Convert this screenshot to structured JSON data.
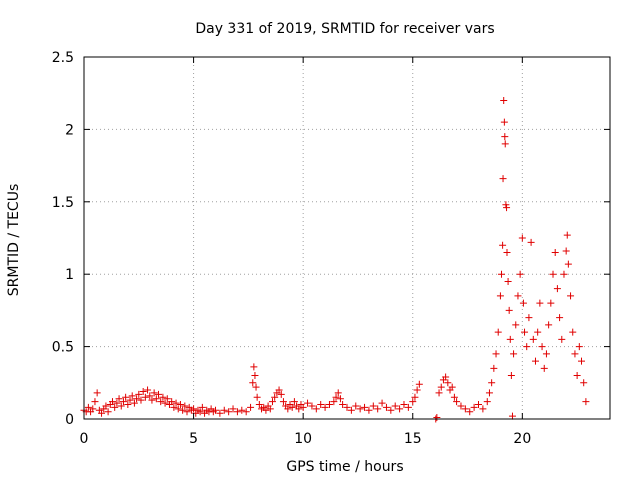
{
  "chart_data": {
    "type": "scatter",
    "title": "Day 331 of 2019, SRMTID for receiver vars",
    "xlabel": "GPS time / hours",
    "ylabel": "SRMTID / TECUs",
    "xlim": [
      0,
      24
    ],
    "ylim": [
      0,
      2.5
    ],
    "x_ticks": [
      0,
      5,
      10,
      15,
      20
    ],
    "x_tick_labels": [
      "0",
      "5",
      "10",
      "15",
      "20"
    ],
    "y_ticks": [
      0,
      0.5,
      1,
      1.5,
      2,
      2.5
    ],
    "y_tick_labels": [
      "0",
      "0.5",
      "1",
      "1.5",
      "2",
      "2.5"
    ],
    "grid": true,
    "marker": "+",
    "color": "#e00000",
    "series": [
      {
        "name": "SRMTID",
        "points": [
          [
            0.0,
            0.06
          ],
          [
            0.1,
            0.05
          ],
          [
            0.2,
            0.08
          ],
          [
            0.3,
            0.05
          ],
          [
            0.4,
            0.07
          ],
          [
            0.5,
            0.12
          ],
          [
            0.6,
            0.18
          ],
          [
            0.7,
            0.06
          ],
          [
            0.8,
            0.04
          ],
          [
            0.9,
            0.07
          ],
          [
            1.0,
            0.09
          ],
          [
            1.1,
            0.05
          ],
          [
            1.2,
            0.1
          ],
          [
            1.3,
            0.12
          ],
          [
            1.4,
            0.08
          ],
          [
            1.5,
            0.11
          ],
          [
            1.6,
            0.14
          ],
          [
            1.7,
            0.09
          ],
          [
            1.8,
            0.12
          ],
          [
            1.9,
            0.15
          ],
          [
            2.0,
            0.1
          ],
          [
            2.1,
            0.13
          ],
          [
            2.2,
            0.16
          ],
          [
            2.3,
            0.11
          ],
          [
            2.4,
            0.14
          ],
          [
            2.5,
            0.17
          ],
          [
            2.6,
            0.13
          ],
          [
            2.7,
            0.19
          ],
          [
            2.8,
            0.15
          ],
          [
            2.9,
            0.2
          ],
          [
            3.0,
            0.16
          ],
          [
            3.1,
            0.13
          ],
          [
            3.2,
            0.18
          ],
          [
            3.3,
            0.14
          ],
          [
            3.4,
            0.17
          ],
          [
            3.5,
            0.12
          ],
          [
            3.6,
            0.15
          ],
          [
            3.7,
            0.11
          ],
          [
            3.8,
            0.14
          ],
          [
            3.9,
            0.1
          ],
          [
            4.0,
            0.12
          ],
          [
            4.1,
            0.08
          ],
          [
            4.2,
            0.11
          ],
          [
            4.3,
            0.07
          ],
          [
            4.4,
            0.1
          ],
          [
            4.5,
            0.06
          ],
          [
            4.6,
            0.09
          ],
          [
            4.7,
            0.05
          ],
          [
            4.8,
            0.08
          ],
          [
            4.9,
            0.06
          ],
          [
            5.0,
            0.07
          ],
          [
            5.1,
            0.04
          ],
          [
            5.2,
            0.06
          ],
          [
            5.3,
            0.05
          ],
          [
            5.4,
            0.08
          ],
          [
            5.5,
            0.04
          ],
          [
            5.6,
            0.06
          ],
          [
            5.7,
            0.05
          ],
          [
            5.8,
            0.07
          ],
          [
            5.9,
            0.05
          ],
          [
            6.0,
            0.06
          ],
          [
            6.2,
            0.04
          ],
          [
            6.4,
            0.06
          ],
          [
            6.6,
            0.05
          ],
          [
            6.8,
            0.07
          ],
          [
            7.0,
            0.05
          ],
          [
            7.2,
            0.06
          ],
          [
            7.4,
            0.05
          ],
          [
            7.6,
            0.08
          ],
          [
            7.7,
            0.25
          ],
          [
            7.75,
            0.36
          ],
          [
            7.8,
            0.3
          ],
          [
            7.85,
            0.22
          ],
          [
            7.9,
            0.15
          ],
          [
            8.0,
            0.1
          ],
          [
            8.1,
            0.07
          ],
          [
            8.2,
            0.08
          ],
          [
            8.3,
            0.06
          ],
          [
            8.4,
            0.09
          ],
          [
            8.5,
            0.07
          ],
          [
            8.6,
            0.12
          ],
          [
            8.7,
            0.15
          ],
          [
            8.8,
            0.18
          ],
          [
            8.9,
            0.2
          ],
          [
            9.0,
            0.17
          ],
          [
            9.1,
            0.12
          ],
          [
            9.2,
            0.09
          ],
          [
            9.3,
            0.07
          ],
          [
            9.4,
            0.1
          ],
          [
            9.5,
            0.08
          ],
          [
            9.6,
            0.12
          ],
          [
            9.7,
            0.09
          ],
          [
            9.8,
            0.07
          ],
          [
            9.9,
            0.1
          ],
          [
            10.0,
            0.08
          ],
          [
            10.2,
            0.11
          ],
          [
            10.4,
            0.09
          ],
          [
            10.6,
            0.07
          ],
          [
            10.8,
            0.1
          ],
          [
            11.0,
            0.08
          ],
          [
            11.2,
            0.1
          ],
          [
            11.4,
            0.12
          ],
          [
            11.5,
            0.15
          ],
          [
            11.6,
            0.18
          ],
          [
            11.7,
            0.14
          ],
          [
            11.8,
            0.1
          ],
          [
            12.0,
            0.08
          ],
          [
            12.2,
            0.06
          ],
          [
            12.4,
            0.09
          ],
          [
            12.6,
            0.07
          ],
          [
            12.8,
            0.08
          ],
          [
            13.0,
            0.06
          ],
          [
            13.2,
            0.09
          ],
          [
            13.4,
            0.07
          ],
          [
            13.6,
            0.11
          ],
          [
            13.8,
            0.08
          ],
          [
            14.0,
            0.06
          ],
          [
            14.2,
            0.09
          ],
          [
            14.4,
            0.07
          ],
          [
            14.6,
            0.1
          ],
          [
            14.8,
            0.08
          ],
          [
            15.0,
            0.12
          ],
          [
            15.1,
            0.15
          ],
          [
            15.2,
            0.2
          ],
          [
            15.3,
            0.24
          ],
          [
            16.05,
            0.0
          ],
          [
            16.1,
            0.01
          ],
          [
            16.2,
            0.18
          ],
          [
            16.3,
            0.22
          ],
          [
            16.4,
            0.27
          ],
          [
            16.5,
            0.29
          ],
          [
            16.6,
            0.25
          ],
          [
            16.7,
            0.2
          ],
          [
            16.8,
            0.22
          ],
          [
            16.9,
            0.15
          ],
          [
            17.0,
            0.12
          ],
          [
            17.2,
            0.09
          ],
          [
            17.4,
            0.07
          ],
          [
            17.6,
            0.05
          ],
          [
            17.8,
            0.08
          ],
          [
            18.0,
            0.1
          ],
          [
            18.2,
            0.07
          ],
          [
            18.4,
            0.12
          ],
          [
            18.5,
            0.18
          ],
          [
            18.6,
            0.25
          ],
          [
            18.7,
            0.35
          ],
          [
            18.8,
            0.45
          ],
          [
            18.9,
            0.6
          ],
          [
            19.0,
            0.85
          ],
          [
            19.05,
            1.0
          ],
          [
            19.1,
            1.2
          ],
          [
            19.12,
            1.66
          ],
          [
            19.15,
            2.2
          ],
          [
            19.18,
            2.05
          ],
          [
            19.2,
            1.95
          ],
          [
            19.22,
            1.9
          ],
          [
            19.25,
            1.48
          ],
          [
            19.28,
            1.46
          ],
          [
            19.3,
            1.15
          ],
          [
            19.35,
            0.95
          ],
          [
            19.4,
            0.75
          ],
          [
            19.45,
            0.55
          ],
          [
            19.5,
            0.3
          ],
          [
            19.55,
            0.02
          ],
          [
            19.6,
            0.45
          ],
          [
            19.7,
            0.65
          ],
          [
            19.8,
            0.85
          ],
          [
            19.9,
            1.0
          ],
          [
            20.0,
            1.25
          ],
          [
            20.05,
            0.8
          ],
          [
            20.1,
            0.6
          ],
          [
            20.2,
            0.5
          ],
          [
            20.3,
            0.7
          ],
          [
            20.4,
            1.22
          ],
          [
            20.5,
            0.55
          ],
          [
            20.6,
            0.4
          ],
          [
            20.7,
            0.6
          ],
          [
            20.8,
            0.8
          ],
          [
            20.9,
            0.5
          ],
          [
            21.0,
            0.35
          ],
          [
            21.1,
            0.45
          ],
          [
            21.2,
            0.65
          ],
          [
            21.3,
            0.8
          ],
          [
            21.4,
            1.0
          ],
          [
            21.5,
            1.15
          ],
          [
            21.6,
            0.9
          ],
          [
            21.7,
            0.7
          ],
          [
            21.8,
            0.55
          ],
          [
            21.9,
            1.0
          ],
          [
            22.0,
            1.16
          ],
          [
            22.05,
            1.27
          ],
          [
            22.1,
            1.07
          ],
          [
            22.2,
            0.85
          ],
          [
            22.3,
            0.6
          ],
          [
            22.4,
            0.45
          ],
          [
            22.5,
            0.3
          ],
          [
            22.6,
            0.5
          ],
          [
            22.7,
            0.4
          ],
          [
            22.8,
            0.25
          ],
          [
            22.9,
            0.12
          ]
        ]
      }
    ]
  }
}
